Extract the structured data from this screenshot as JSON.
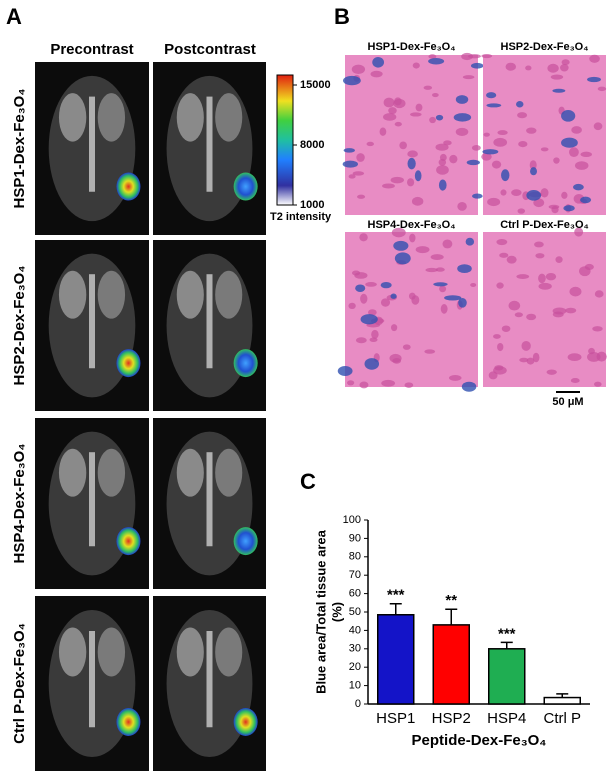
{
  "panel_a": {
    "label": "A",
    "columns": [
      "Precontrast",
      "Postcontrast"
    ],
    "rows": [
      "HSP1-Dex-Fe₃O₄",
      "HSP2-Dex-Fe₃O₄",
      "HSP4-Dex-Fe₃O₄",
      "Ctrl P-Dex-Fe₃O₄"
    ],
    "colorbar": {
      "label": "T2  intensity",
      "lim": [
        1000,
        15000
      ],
      "ticks": [
        1000,
        8000,
        15000
      ]
    }
  },
  "panel_b": {
    "label": "B",
    "images": [
      "HSP1-Dex-Fe₃O₄",
      "HSP2-Dex-Fe₃O₄",
      "HSP4-Dex-Fe₃O₄",
      "Ctrl P-Dex-Fe₃O₄"
    ],
    "scale_bar": "50 μM"
  },
  "chart_data": {
    "type": "bar",
    "label": "C",
    "y_label": [
      "Blue area/Total tissue area",
      "(%)"
    ],
    "x_label": "Peptide-Dex-Fe₃O₄",
    "categories": [
      "HSP1",
      "HSP2",
      "HSP4",
      "Ctrl P"
    ],
    "values": [
      48.5,
      43,
      30,
      3.5
    ],
    "errors": [
      6,
      8.5,
      3.5,
      2
    ],
    "colors": [
      "#1414c8",
      "#ff0000",
      "#1fae52",
      "#ffffff"
    ],
    "significance": [
      "***",
      "**",
      "***",
      null
    ],
    "ylim": [
      0,
      100
    ],
    "yticks": [
      0,
      10,
      20,
      30,
      40,
      50,
      60,
      70,
      80,
      90,
      100
    ]
  }
}
